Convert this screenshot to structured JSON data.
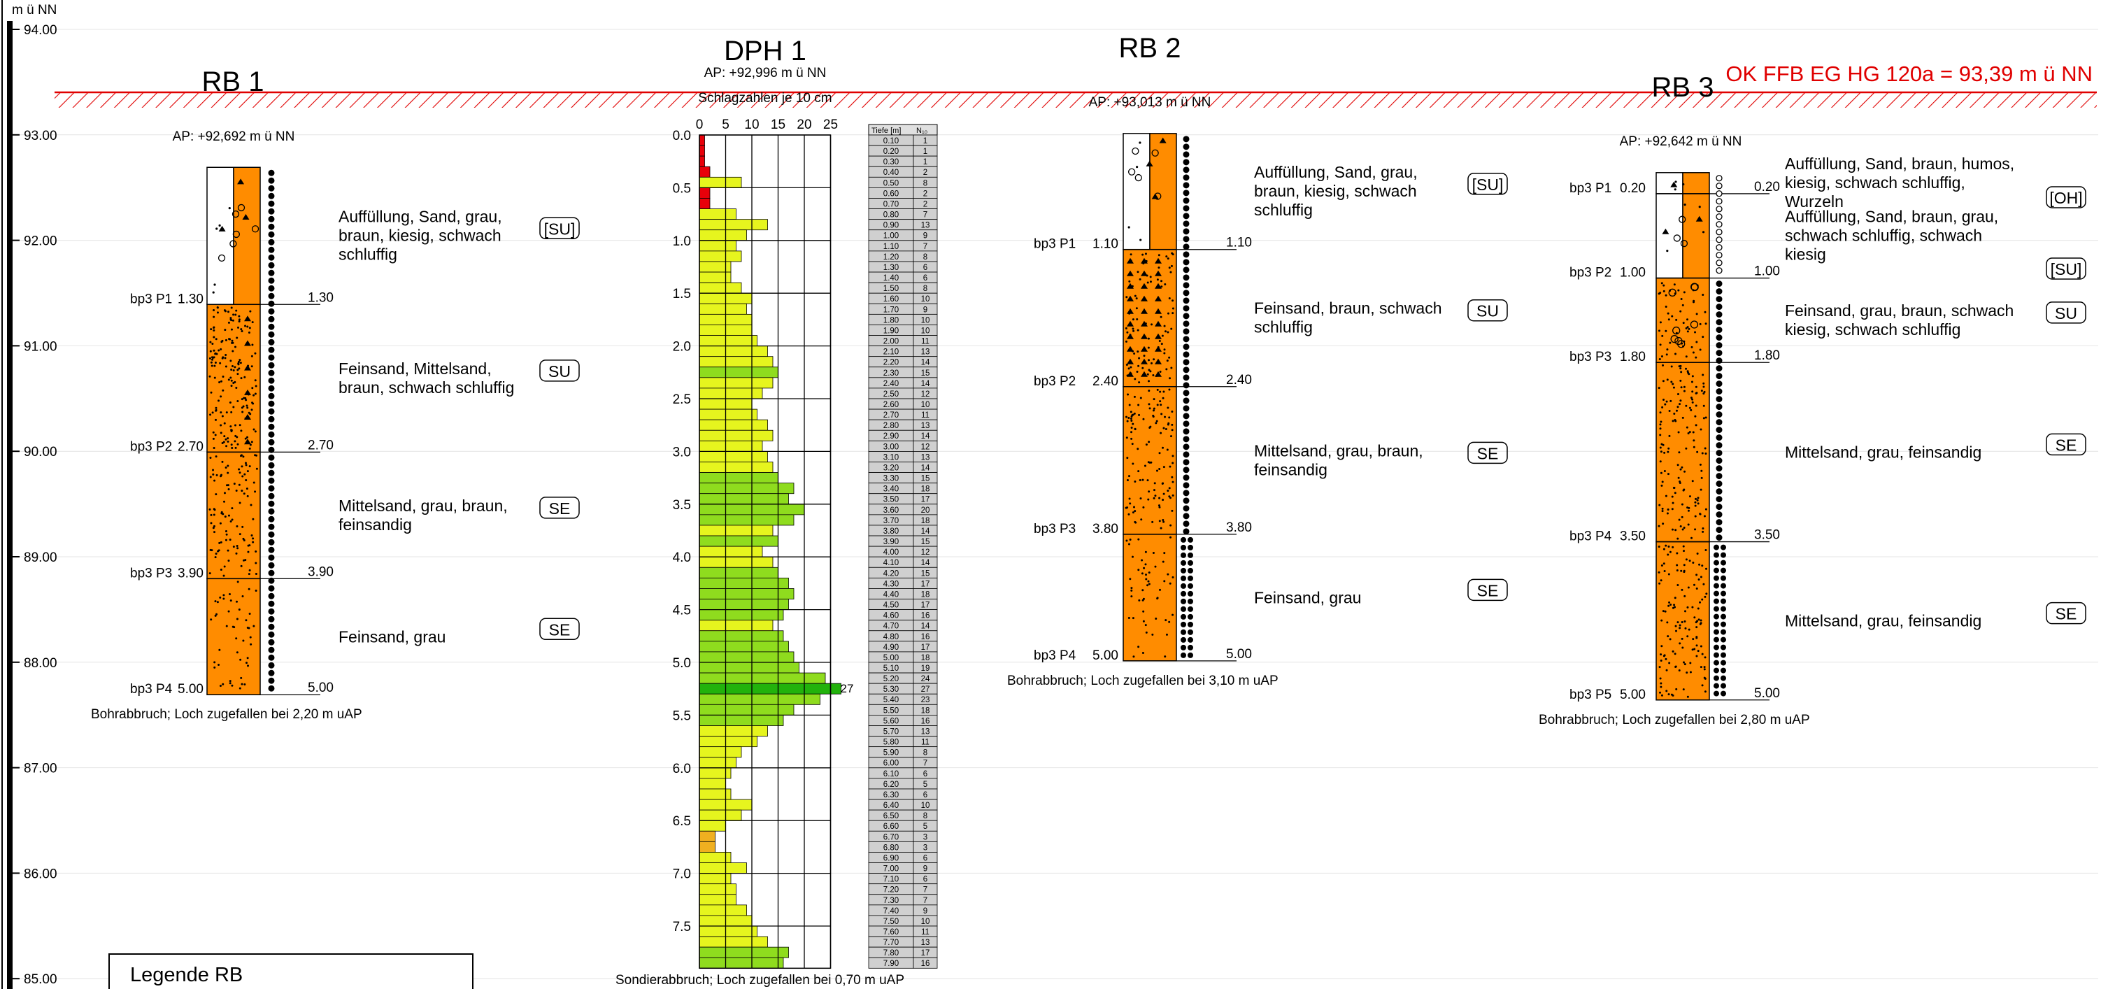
{
  "elevation_axis": {
    "unit": "m ü NN",
    "ticks": [
      "94.00",
      "93.00",
      "92.00",
      "91.00",
      "90.00",
      "89.00",
      "88.00",
      "87.00",
      "86.00",
      "85.00"
    ]
  },
  "reference_line": {
    "label": "OK FFB EG HG 120a = 93,39 m ü NN",
    "color": "#e00000"
  },
  "boreholes": [
    {
      "id": "rb1",
      "title": "RB 1",
      "ap_label": "AP: +92,692 m ü NN",
      "top": 92.692,
      "layers": [
        {
          "from": 0,
          "to": 1.3,
          "fill": "#ffffff",
          "pattern": "fill",
          "description": [
            "Auffüllung, Sand, grau,",
            "braun, kiesig, schwach",
            "schluffig"
          ],
          "code": "[SU]"
        },
        {
          "from": 1.3,
          "to": 2.7,
          "fill": "#ff8c00",
          "pattern": "fine",
          "description": [
            "Feinsand, Mittelsand,",
            "braun, schwach schluffig"
          ],
          "code": "SU"
        },
        {
          "from": 2.7,
          "to": 3.9,
          "fill": "#ff8c00",
          "pattern": "medium",
          "description": [
            "Mittelsand, grau, braun,",
            "feinsandig"
          ],
          "code": "SE"
        },
        {
          "from": 3.9,
          "to": 5.0,
          "fill": "#ff8c00",
          "pattern": "sparse",
          "description": [
            "Feinsand, grau"
          ],
          "code": "SE"
        }
      ],
      "samples": [
        {
          "name": "bp3 P1",
          "depth": "1.30"
        },
        {
          "name": "bp3 P2",
          "depth": "2.70"
        },
        {
          "name": "bp3 P3",
          "depth": "3.90"
        },
        {
          "name": "bp3 P4",
          "depth": "5.00"
        }
      ],
      "boundary_labels": [
        "1.30",
        "2.70",
        "3.90",
        "5.00"
      ],
      "moisture": [
        {
          "from": 0,
          "to": 5.0,
          "type": "single"
        }
      ],
      "note": "Bohrabbruch; Loch zugefallen bei 2,20 m uAP"
    },
    {
      "id": "rb2",
      "title": "RB 2",
      "ap_label": "AP: +93,013 m ü NN",
      "top": 93.013,
      "layers": [
        {
          "from": 0,
          "to": 1.1,
          "fill": "#ffffff",
          "pattern": "fill",
          "description": [
            "Auffüllung, Sand, grau,",
            "braun, kiesig, schwach",
            "schluffig"
          ],
          "code": "[SU]"
        },
        {
          "from": 1.1,
          "to": 2.4,
          "fill": "#ff8c00",
          "pattern": "silt",
          "description": [
            "Feinsand, braun, schwach",
            "schluffig"
          ],
          "code": "SU"
        },
        {
          "from": 2.4,
          "to": 3.8,
          "fill": "#ff8c00",
          "pattern": "medium",
          "description": [
            "Mittelsand, grau, braun,",
            "feinsandig"
          ],
          "code": "SE"
        },
        {
          "from": 3.8,
          "to": 5.0,
          "fill": "#ff8c00",
          "pattern": "sparse",
          "description": [
            "Feinsand, grau"
          ],
          "code": "SE"
        }
      ],
      "samples": [
        {
          "name": "bp3 P1",
          "depth": "1.10"
        },
        {
          "name": "bp3 P2",
          "depth": "2.40"
        },
        {
          "name": "bp3 P3",
          "depth": "3.80"
        },
        {
          "name": "bp3 P4",
          "depth": "5.00"
        }
      ],
      "boundary_labels": [
        "1.10",
        "2.40",
        "3.80",
        "5.00"
      ],
      "moisture": [
        {
          "from": 0,
          "to": 3.8,
          "type": "single"
        },
        {
          "from": 3.8,
          "to": 5.0,
          "type": "double"
        }
      ],
      "note": "Bohrabbruch; Loch zugefallen bei 3,10 m uAP"
    },
    {
      "id": "rb3",
      "title": "RB 3",
      "ap_label": "AP: +92,642 m ü NN",
      "top": 92.642,
      "layers": [
        {
          "from": 0,
          "to": 0.2,
          "fill": "#ffffff",
          "pattern": "fill",
          "description": [
            "Auffüllung, Sand, braun, humos,",
            "kiesig, schwach schluffig,",
            "Wurzeln"
          ],
          "code": "[OH]"
        },
        {
          "from": 0.2,
          "to": 1.0,
          "fill": "#ffffff",
          "pattern": "fill",
          "description": [
            "Auffüllung, Sand, braun, grau,",
            "schwach schluffig, schwach",
            "kiesig"
          ],
          "code": "[SU]"
        },
        {
          "from": 1.0,
          "to": 1.8,
          "fill": "#ff8c00",
          "pattern": "gravel",
          "description": [
            "Feinsand, grau, braun, schwach",
            "kiesig, schwach schluffig"
          ],
          "code": "SU"
        },
        {
          "from": 1.8,
          "to": 3.5,
          "fill": "#ff8c00",
          "pattern": "medium",
          "description": [
            "Mittelsand, grau, feinsandig"
          ],
          "code": "SE"
        },
        {
          "from": 3.5,
          "to": 5.0,
          "fill": "#ff8c00",
          "pattern": "medium",
          "description": [
            "Mittelsand, grau, feinsandig"
          ],
          "code": "SE"
        }
      ],
      "samples": [
        {
          "name": "bp3 P1",
          "depth": "0.20"
        },
        {
          "name": "bp3 P2",
          "depth": "1.00"
        },
        {
          "name": "bp3 P3",
          "depth": "1.80"
        },
        {
          "name": "bp3 P4",
          "depth": "3.50"
        },
        {
          "name": "bp3 P5",
          "depth": "5.00"
        }
      ],
      "boundary_labels": [
        "0.20",
        "1.00",
        "1.80",
        "3.50",
        "5.00"
      ],
      "moisture": [
        {
          "from": 0,
          "to": 1.0,
          "type": "open"
        },
        {
          "from": 1.0,
          "to": 3.5,
          "type": "single"
        },
        {
          "from": 3.5,
          "to": 5.0,
          "type": "double"
        }
      ],
      "note": "Bohrabbruch; Loch zugefallen bei 2,80 m uAP"
    }
  ],
  "dph": {
    "title": "DPH 1",
    "ap_label": "AP: +92,996 m ü NN",
    "subtitle": "Schlagzahlen je 10 cm",
    "x_ticks": [
      "0",
      "5",
      "10",
      "15",
      "20",
      "25"
    ],
    "depth_ticks": [
      "0.0",
      "0.5",
      "1.0",
      "1.5",
      "2.0",
      "2.5",
      "3.0",
      "3.5",
      "4.0",
      "4.5",
      "5.0",
      "5.5",
      "6.0",
      "6.5",
      "7.0",
      "7.5"
    ],
    "table_headers": [
      "Tiefe [m]",
      "N₁₀"
    ],
    "depths": [
      "0.10",
      "0.20",
      "0.30",
      "0.40",
      "0.50",
      "0.60",
      "0.70",
      "0.80",
      "0.90",
      "1.00",
      "1.10",
      "1.20",
      "1.30",
      "1.40",
      "1.50",
      "1.60",
      "1.70",
      "1.80",
      "1.90",
      "2.00",
      "2.10",
      "2.20",
      "2.30",
      "2.40",
      "2.50",
      "2.60",
      "2.70",
      "2.80",
      "2.90",
      "3.00",
      "3.10",
      "3.20",
      "3.30",
      "3.40",
      "3.50",
      "3.60",
      "3.70",
      "3.80",
      "3.90",
      "4.00",
      "4.10",
      "4.20",
      "4.30",
      "4.40",
      "4.50",
      "4.60",
      "4.70",
      "4.80",
      "4.90",
      "5.00",
      "5.10",
      "5.20",
      "5.30",
      "5.40",
      "5.50",
      "5.60",
      "5.70",
      "5.80",
      "5.90",
      "6.00",
      "6.10",
      "6.20",
      "6.30",
      "6.40",
      "6.50",
      "6.60",
      "6.70",
      "6.80",
      "6.90",
      "7.00",
      "7.10",
      "7.20",
      "7.30",
      "7.40",
      "7.50",
      "7.60",
      "7.70",
      "7.80",
      "7.90"
    ],
    "blows": [
      1,
      1,
      1,
      2,
      8,
      2,
      2,
      7,
      13,
      9,
      7,
      8,
      6,
      6,
      8,
      10,
      9,
      10,
      10,
      11,
      13,
      14,
      15,
      14,
      12,
      10,
      11,
      13,
      14,
      12,
      13,
      14,
      15,
      18,
      17,
      20,
      18,
      14,
      15,
      12,
      14,
      15,
      17,
      18,
      17,
      16,
      14,
      16,
      17,
      18,
      19,
      24,
      27,
      23,
      18,
      16,
      13,
      11,
      8,
      7,
      6,
      5,
      6,
      10,
      8,
      5,
      3,
      3,
      6,
      9,
      6,
      7,
      7,
      9,
      10,
      11,
      13,
      17,
      16
    ],
    "max_label": "27",
    "note": "Sondierabbruch; Loch zugefallen bei 0,70 m uAP"
  },
  "legend": {
    "title": "Legende RB"
  }
}
